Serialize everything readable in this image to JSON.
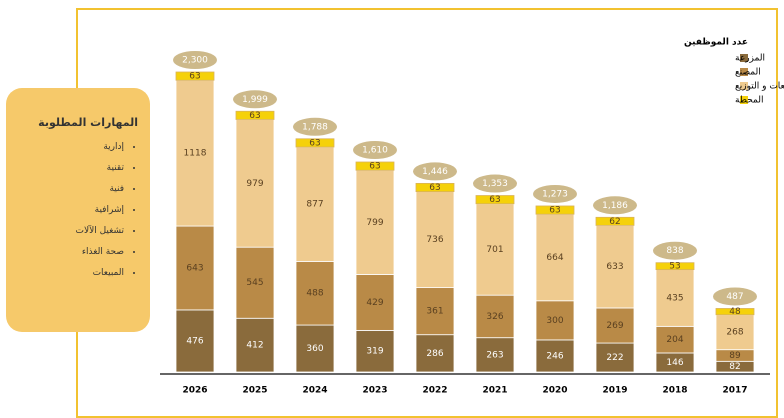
{
  "skills": {
    "title": "المهارات المطلوبة",
    "items": [
      "إدارية",
      "تقنية",
      "فنية",
      "إشرافية",
      "تشغيل الآلات",
      "صحة الغذاء",
      "المبيعات"
    ]
  },
  "chart_data": {
    "type": "stacked-bar",
    "legend_title": "عدد الموظفين",
    "categories": [
      "2026",
      "2025",
      "2024",
      "2023",
      "2022",
      "2021",
      "2020",
      "2019",
      "2018",
      "2017"
    ],
    "series": [
      {
        "name": "المزرعة",
        "color": "#8a6b3c",
        "values": [
          476,
          412,
          360,
          319,
          286,
          263,
          246,
          222,
          146,
          82
        ]
      },
      {
        "name": "المصنع",
        "color": "#b98a47",
        "values": [
          643,
          545,
          488,
          429,
          361,
          326,
          300,
          269,
          204,
          89
        ]
      },
      {
        "name": "المبيعات و التوزيع",
        "color": "#efcb8f",
        "values": [
          1118,
          979,
          877,
          799,
          736,
          701,
          664,
          633,
          435,
          268
        ]
      },
      {
        "name": "المحطة",
        "color": "#f5d10a",
        "values": [
          63,
          63,
          63,
          63,
          63,
          63,
          63,
          62,
          53,
          48
        ]
      }
    ],
    "total_labels": [
      "2,300",
      "1,999",
      "1,788",
      "1,610",
      "1,446",
      "1,353",
      "1,273",
      "1,186",
      "838",
      "487"
    ]
  }
}
